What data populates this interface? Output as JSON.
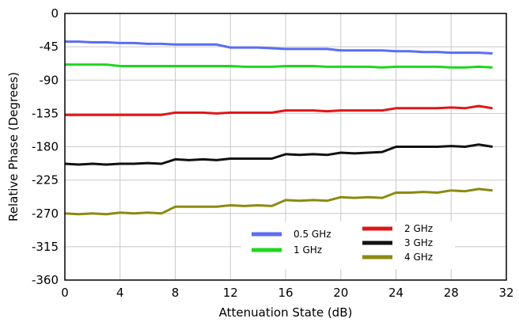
{
  "chart_data": {
    "type": "line",
    "title": "",
    "xlabel": "Attenuation State (dB)",
    "ylabel": "Relative Phase (Degrees)",
    "xlim": [
      0,
      32
    ],
    "ylim": [
      -360,
      0
    ],
    "xticks": [
      0,
      4,
      8,
      12,
      16,
      20,
      24,
      28,
      32
    ],
    "yticks": [
      0,
      -45,
      -90,
      -135,
      -180,
      -225,
      -270,
      -315,
      -360
    ],
    "grid": true,
    "x": [
      0,
      1,
      2,
      3,
      4,
      5,
      6,
      7,
      8,
      9,
      10,
      11,
      12,
      13,
      14,
      15,
      16,
      17,
      18,
      19,
      20,
      21,
      22,
      23,
      24,
      25,
      26,
      27,
      28,
      29,
      30,
      31
    ],
    "series": [
      {
        "name": "0.5 GHz",
        "color": "#5b6cf5",
        "values": [
          -38,
          -38,
          -39,
          -39,
          -40,
          -40,
          -41,
          -41,
          -42,
          -42,
          -42,
          -42,
          -46,
          -46,
          -46,
          -47,
          -48,
          -48,
          -48,
          -48,
          -50,
          -50,
          -50,
          -50,
          -51,
          -51,
          -52,
          -52,
          -53,
          -53,
          -53,
          -54
        ]
      },
      {
        "name": "1 GHz",
        "color": "#1ed71e",
        "values": [
          -69,
          -69,
          -69,
          -69,
          -71,
          -71,
          -71,
          -71,
          -71,
          -71,
          -71,
          -71,
          -71,
          -72,
          -72,
          -72,
          -71,
          -71,
          -71,
          -72,
          -72,
          -72,
          -72,
          -73,
          -72,
          -72,
          -72,
          -72,
          -73,
          -73,
          -72,
          -73
        ]
      },
      {
        "name": "2 GHz",
        "color": "#e01616",
        "values": [
          -137,
          -137,
          -137,
          -137,
          -137,
          -137,
          -137,
          -137,
          -134,
          -134,
          -134,
          -135,
          -134,
          -134,
          -134,
          -134,
          -131,
          -131,
          -131,
          -132,
          -131,
          -131,
          -131,
          -131,
          -128,
          -128,
          -128,
          -128,
          -127,
          -128,
          -125,
          -128
        ]
      },
      {
        "name": "3 GHz",
        "color": "#111111",
        "values": [
          -203,
          -204,
          -203,
          -204,
          -203,
          -203,
          -202,
          -203,
          -197,
          -198,
          -197,
          -198,
          -196,
          -196,
          -196,
          -196,
          -190,
          -191,
          -190,
          -191,
          -188,
          -189,
          -188,
          -187,
          -180,
          -180,
          -180,
          -180,
          -179,
          -180,
          -177,
          -180
        ]
      },
      {
        "name": "4 GHz",
        "color": "#8b8a10",
        "values": [
          -270,
          -271,
          -270,
          -271,
          -269,
          -270,
          -269,
          -270,
          -261,
          -261,
          -261,
          -261,
          -259,
          -260,
          -259,
          -260,
          -252,
          -253,
          -252,
          -253,
          -248,
          -249,
          -248,
          -249,
          -242,
          -242,
          -241,
          -242,
          -239,
          -240,
          -237,
          -239
        ]
      }
    ]
  }
}
